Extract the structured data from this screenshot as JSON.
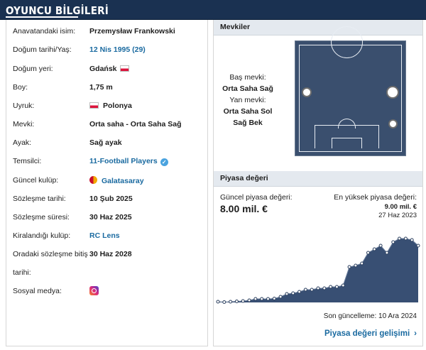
{
  "header": {
    "title": "OYUNCU BİLGİLERİ"
  },
  "player_info": [
    {
      "label": "Anavatandaki isim:",
      "value": "Przemysław Frankowski"
    },
    {
      "label": "Doğum tarihi/Yaş:",
      "value": "12 Nis 1995 (29)"
    },
    {
      "label": "Doğum yeri:",
      "value": "Gdańsk"
    },
    {
      "label": "Boy:",
      "value": "1,75 m"
    },
    {
      "label": "Uyruk:",
      "value": "Polonya"
    },
    {
      "label": "Mevki:",
      "value": "Orta saha - Orta Saha Sağ"
    },
    {
      "label": "Ayak:",
      "value": "Sağ ayak"
    },
    {
      "label": "Temsilci:",
      "value": "11-Football Players"
    },
    {
      "label": "Güncel kulüp:",
      "value": "Galatasaray"
    },
    {
      "label": "Sözleşme tarihi:",
      "value": "10 Şub 2025"
    },
    {
      "label": "Sözleşme süresi:",
      "value": "30 Haz 2025"
    },
    {
      "label": "Kiralandığı kulüp:",
      "value": "RC Lens"
    },
    {
      "label": "Oradaki sözleşme bitiş",
      "value": "30 Haz 2028"
    },
    {
      "label": "tarihi:",
      "value": ""
    },
    {
      "label": "Sosyal medya:",
      "value": ""
    }
  ],
  "icons": {
    "poland_flag": "flag-poland-icon",
    "verified": "verified-icon",
    "club": "galatasaray-crest-icon",
    "social": "instagram-icon"
  },
  "positions": {
    "title": "Mevkiler",
    "main_label": "Baş mevki:",
    "main_value": "Orta Saha Sağ",
    "side_label": "Yan mevki:",
    "side_values": [
      "Orta Saha Sol",
      "Sağ Bek"
    ]
  },
  "market_value": {
    "title": "Piyasa değeri",
    "current_label": "Güncel piyasa değeri:",
    "current_value": "8.00 mil. €",
    "max_label": "En yüksek piyasa değeri:",
    "max_value": "9.00 mil. €",
    "max_date": "27 Haz 2023",
    "last_update": "Son güncelleme: 10 Ara 2024",
    "link_label": "Piyasa değeri gelişimi",
    "link_chevron": "›"
  },
  "chart_data": {
    "type": "area",
    "y": [
      0.1,
      0.05,
      0.1,
      0.15,
      0.2,
      0.3,
      0.5,
      0.5,
      0.5,
      0.55,
      0.8,
      1.2,
      1.3,
      1.5,
      1.8,
      1.8,
      2.0,
      2.0,
      2.2,
      2.2,
      2.4,
      5.0,
      5.2,
      5.5,
      7.0,
      7.5,
      8.0,
      7.0,
      8.5,
      9.0,
      9.0,
      8.8,
      8.0
    ],
    "ylim": [
      0,
      10
    ],
    "colors": {
      "area": "#384f73",
      "line": "#6c7f9c",
      "point_fill": "#ffffff"
    }
  },
  "colors": {
    "header": "#1a3151",
    "link": "#1a6aa0",
    "section_bg": "#e4e9ef",
    "pitch": "#3a4f6e"
  }
}
